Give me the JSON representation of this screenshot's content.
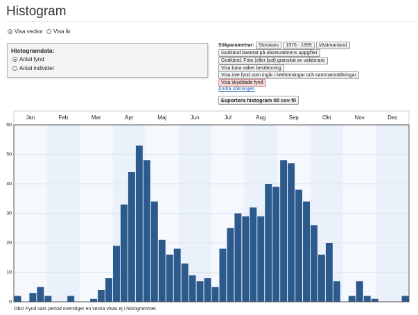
{
  "header": {
    "title": "Histogram"
  },
  "view": {
    "options": [
      "Visa veckor",
      "Visa år"
    ]
  },
  "histogram_data": {
    "label": "Histogramdata:",
    "options": [
      "Antal fynd",
      "Antal individer"
    ]
  },
  "search": {
    "label": "Sökparametrar:",
    "params": [
      "Storskarv",
      "1976 - 1999",
      "Västmanland",
      "Godkänd baserat på observatörens uppgifter",
      "Godkänd. Foto (eller ljud) granskat av validerare",
      "Visa bara säker bestämning",
      "Visa inte fynd som ingår i bedömningar och sammanställningar",
      "Visa skyddade fynd"
    ],
    "change_link": "Ändra sökningen"
  },
  "export_button": "Exportera histogram till csv-fil",
  "note": "Obs! Fynd vars period överstiger en vecka visas ej i histogrammet.",
  "chart_data": {
    "type": "bar",
    "month_labels": [
      "Jan",
      "Feb",
      "Mar",
      "Apr",
      "Maj",
      "Jun",
      "Jul",
      "Aug",
      "Sep",
      "Okt",
      "Nov",
      "Dec"
    ],
    "values": [
      2,
      0,
      3,
      5,
      2,
      0,
      0,
      2,
      0,
      0,
      1,
      4,
      8,
      19,
      33,
      44,
      53,
      48,
      34,
      21,
      16,
      18,
      13,
      9,
      7,
      8,
      5,
      18,
      25,
      30,
      29,
      32,
      29,
      40,
      39,
      48,
      47,
      38,
      34,
      26,
      16,
      20,
      7,
      0,
      2,
      7,
      2,
      1,
      0,
      0,
      0,
      2
    ],
    "color": "#2d5a8c",
    "ylim": [
      0,
      60
    ],
    "yticks": [
      0,
      10,
      20,
      30,
      40,
      50,
      60
    ],
    "grid": true
  }
}
